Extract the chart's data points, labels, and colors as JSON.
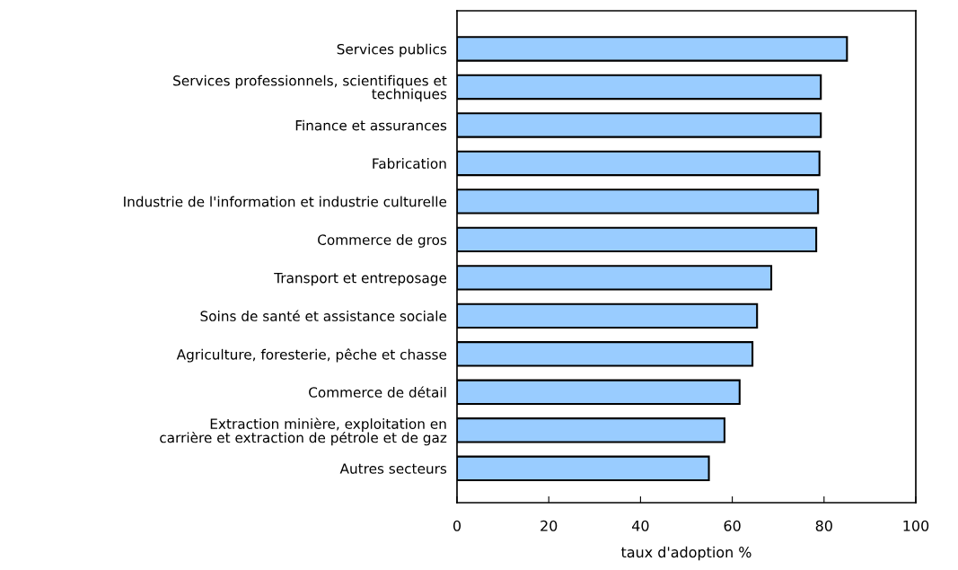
{
  "chart_data": {
    "type": "bar",
    "orientation": "horizontal",
    "xlabel": "taux d'adoption %",
    "categories": [
      "Services publics",
      "Services professionnels, scientifiques et\ntechniques",
      "Finance et assurances",
      "Fabrication",
      "Industrie de l'information et industrie culturelle",
      "Commerce de gros",
      "Transport et entreposage",
      "Soins de santé et assistance sociale",
      "Agriculture, foresterie, pêche et chasse",
      "Commerce de détail",
      "Extraction minière, exploitation en\ncarrière et extraction de pétrole et de gaz",
      "Autres secteurs"
    ],
    "values": [
      85.0,
      79.3,
      79.3,
      79.0,
      78.7,
      78.3,
      68.5,
      65.4,
      64.4,
      61.6,
      58.3,
      54.9
    ],
    "color": "#99ccff",
    "xlim": [
      0,
      100
    ],
    "xticks": [
      0,
      20,
      40,
      60,
      80,
      100
    ],
    "grid": false,
    "legend": false
  }
}
